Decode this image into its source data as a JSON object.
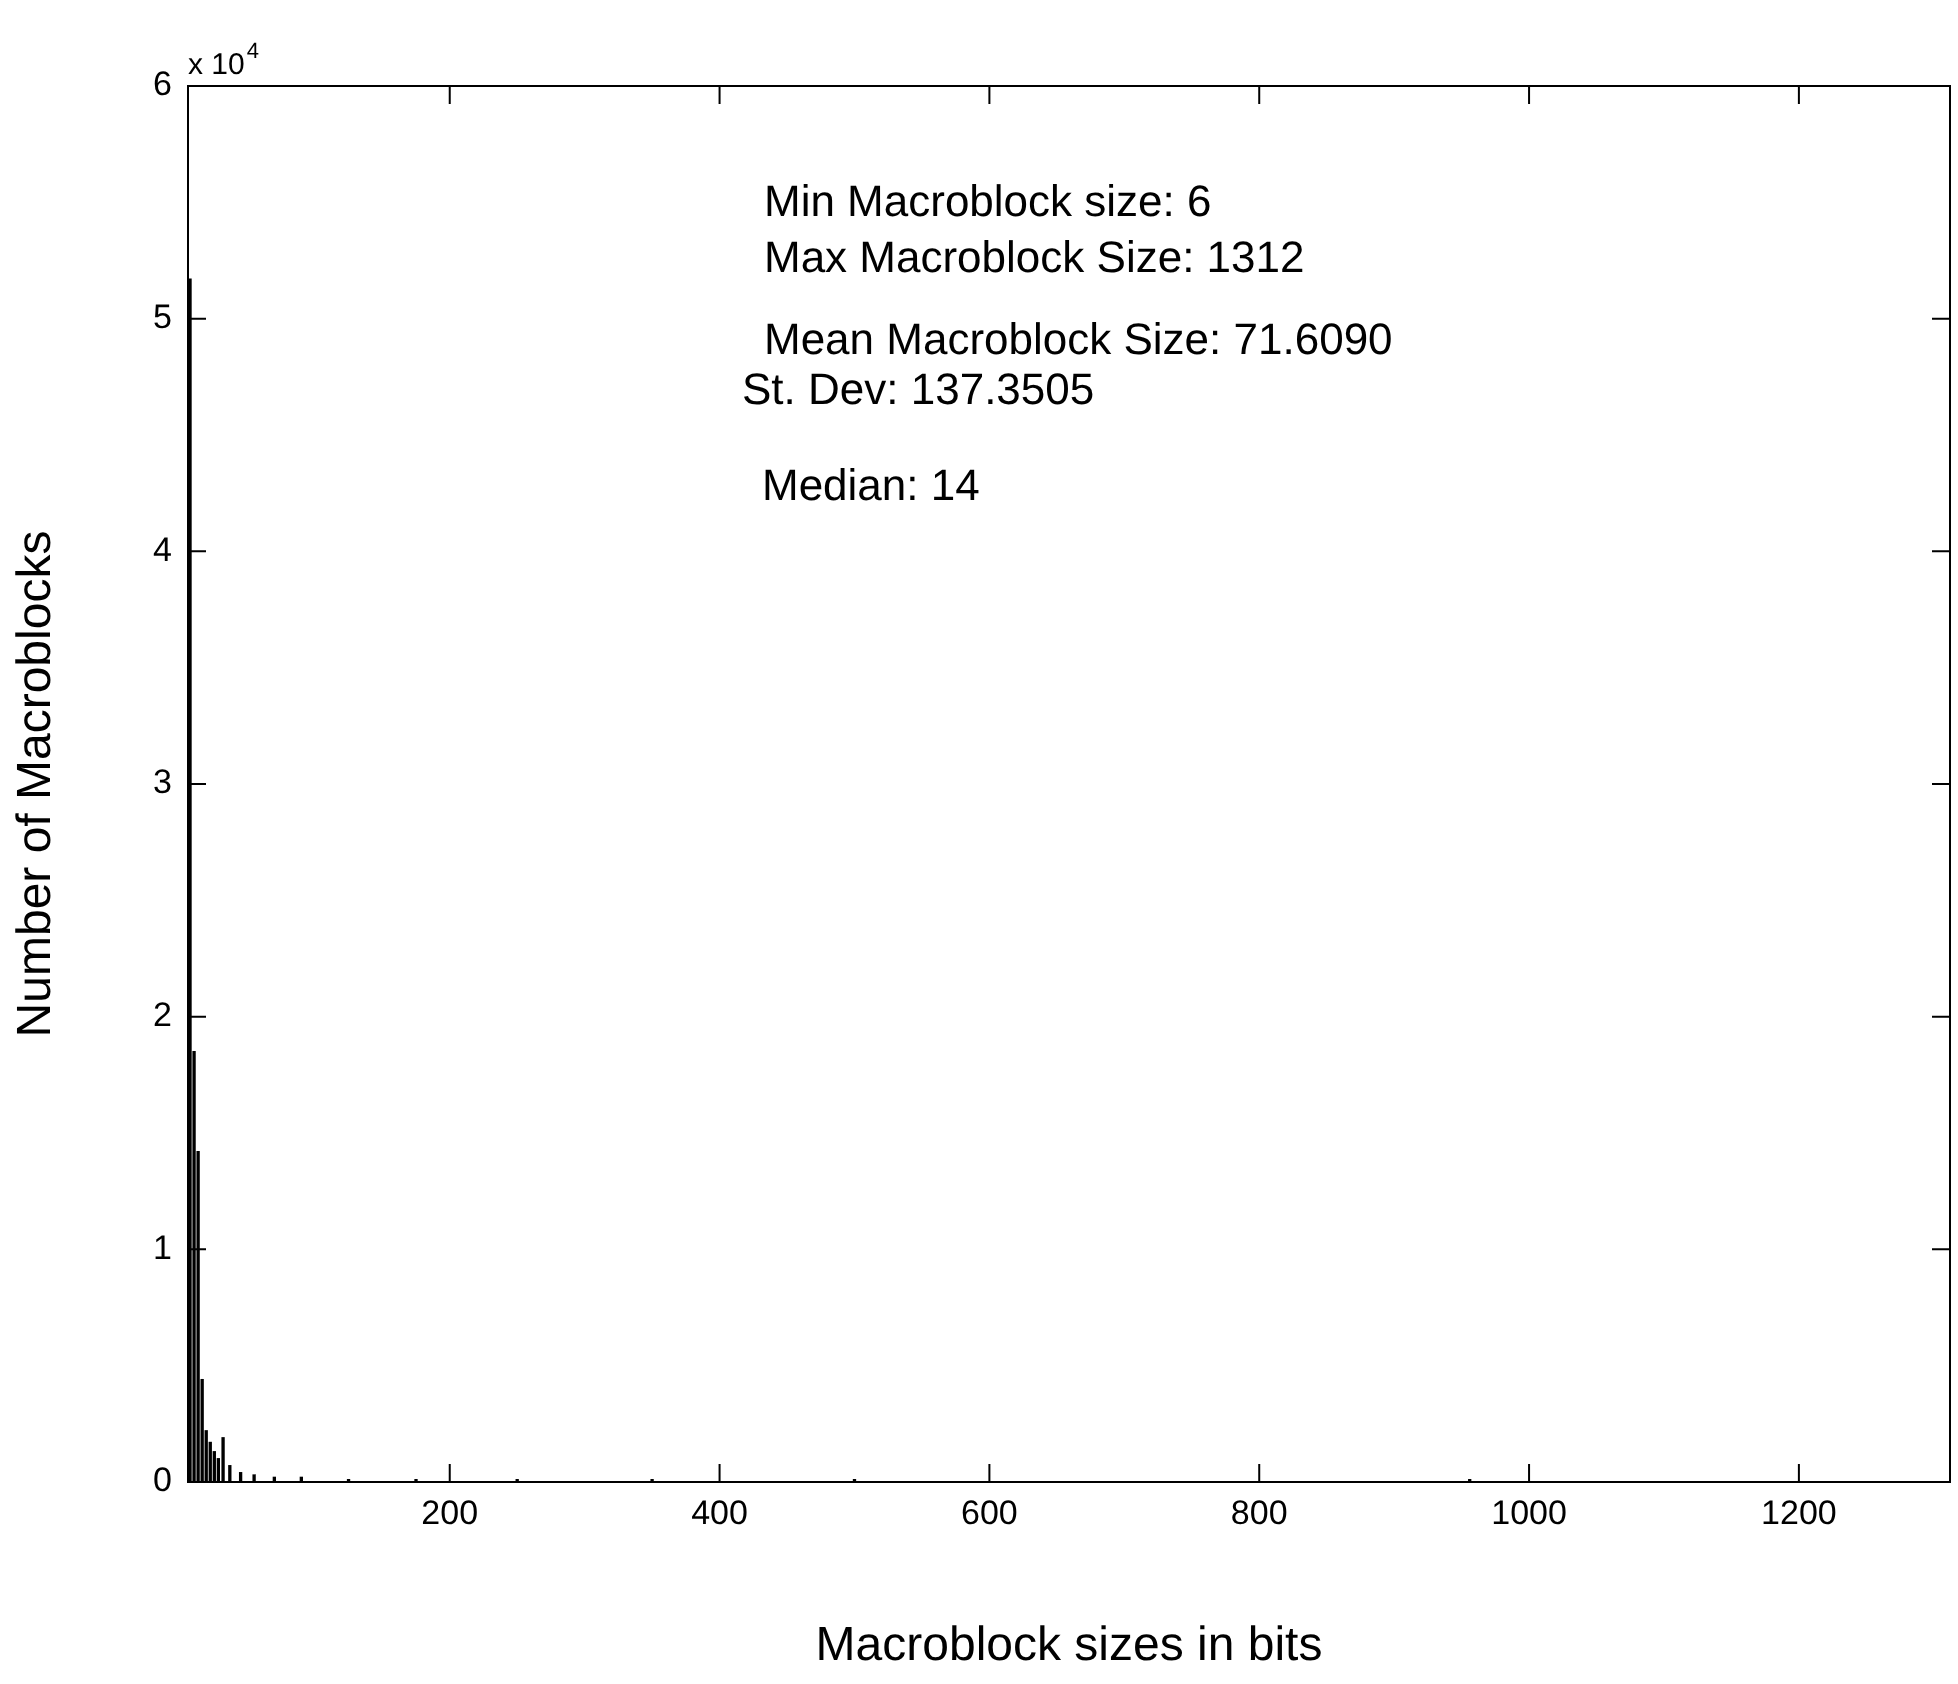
{
  "chart_data": {
    "type": "histogram",
    "xlabel": "Macroblock sizes in bits",
    "ylabel": "Number of Macroblocks",
    "bins": [
      6,
      9,
      12,
      15,
      18,
      21,
      24,
      27,
      30,
      34,
      40,
      50,
      60,
      80,
      100,
      150,
      200,
      300,
      400,
      600,
      1312
    ],
    "values": [
      5.17,
      1.85,
      1.42,
      0.44,
      0.22,
      0.17,
      0.13,
      0.1,
      0.19,
      0.07,
      0.04,
      0.03,
      0.02,
      0.02,
      0.01,
      0.01,
      0.01,
      0.01,
      0.01,
      0.01
    ],
    "color": "#000000",
    "xlim": [
      6,
      1312
    ],
    "xticks": [
      200,
      400,
      600,
      800,
      1000,
      1200
    ],
    "ylim": [
      0,
      6
    ],
    "yticks": [
      0,
      1,
      2,
      3,
      4,
      5,
      6
    ],
    "grid": false,
    "legend": false,
    "annotations": [
      "x 10$^{4}$",
      "Min Macroblock size: 6",
      "Max Macroblock Size: 1312",
      "Mean Macroblock Size: 71.6090",
      "St. Dev: 137.3505",
      "Median: 14"
    ]
  }
}
